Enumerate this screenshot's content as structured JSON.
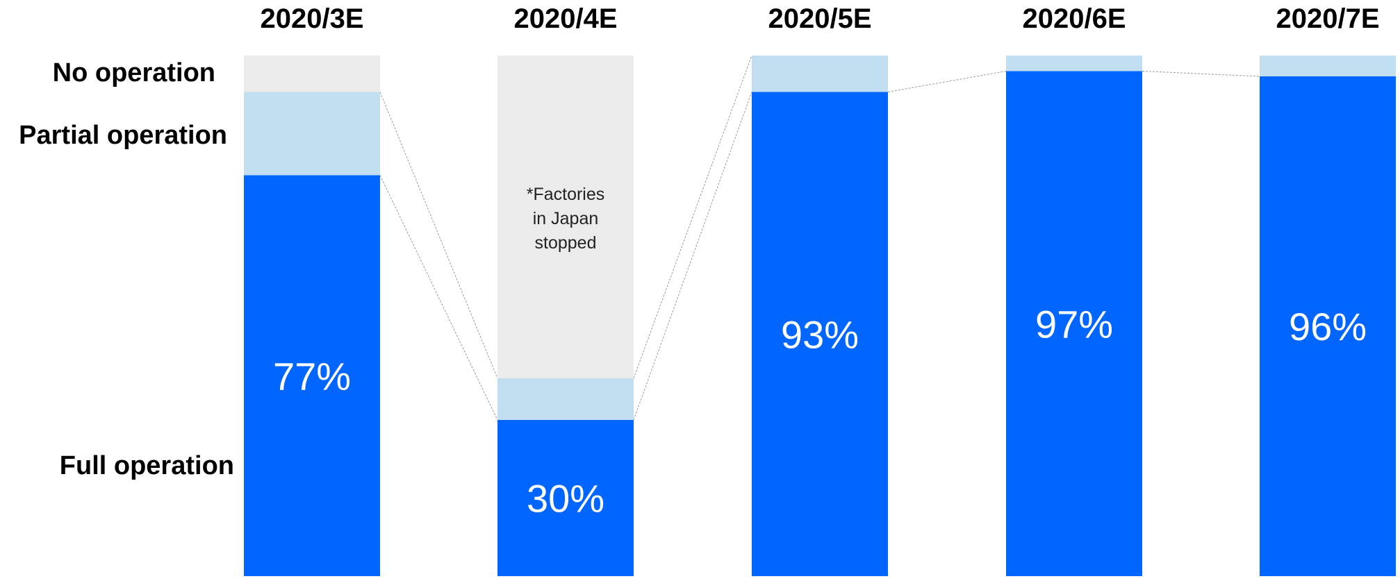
{
  "chart_data": {
    "type": "bar",
    "stacked": true,
    "percent_scale": true,
    "categories": [
      "2020/3E",
      "2020/4E",
      "2020/5E",
      "2020/6E",
      "2020/7E"
    ],
    "series": [
      {
        "name": "Full operation",
        "values": [
          77,
          30,
          93,
          97,
          96
        ],
        "color": "#0066ff"
      },
      {
        "name": "Partial operation",
        "values": [
          16,
          8,
          7,
          3,
          4
        ],
        "color": "#c2dff2"
      },
      {
        "name": "No operation",
        "values": [
          7,
          62,
          0,
          0,
          0
        ],
        "color": "#ebebeb"
      }
    ],
    "value_labels": [
      "77%",
      "30%",
      "93%",
      "97%",
      "96%"
    ],
    "ylim": [
      0,
      100
    ],
    "grid": false,
    "legend_placement": "left",
    "annotation": {
      "category": "2020/4E",
      "lines": [
        "*Factories",
        "in Japan",
        "stopped"
      ]
    },
    "connector_lines": true
  }
}
